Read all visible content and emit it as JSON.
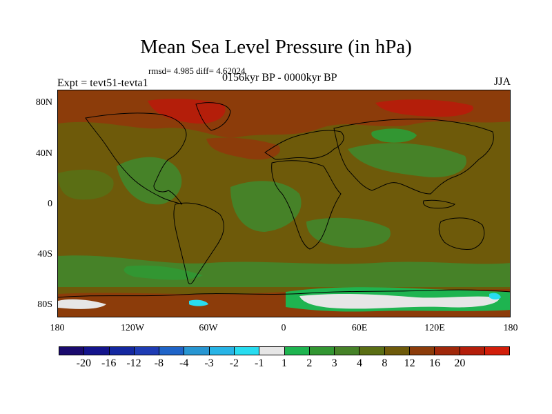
{
  "title": "Mean Sea Level Pressure (in hPa)",
  "stats": "rmsd= 4.985 diff= 4.62024",
  "left_label": "Expt = tevt51-tevta1",
  "center_label": "0156kyr BP - 0000kyr BP",
  "right_label": "JJA",
  "lat_ticks": [
    "80N",
    "40N",
    "0",
    "40S",
    "80S"
  ],
  "lon_ticks": [
    "180",
    "120W",
    "60W",
    "0",
    "60E",
    "120E",
    "180"
  ],
  "colorbar": {
    "labels": [
      "-20",
      "-16",
      "-12",
      "-8",
      "-4",
      "-3",
      "-2",
      "-1",
      "1",
      "2",
      "3",
      "4",
      "8",
      "12",
      "16",
      "20"
    ],
    "colors": [
      "#1a0a6e",
      "#14148c",
      "#1428a0",
      "#1e3cb4",
      "#1f64c8",
      "#2896d2",
      "#28b4e6",
      "#28dcf0",
      "#e6e6e6",
      "#1eb450",
      "#329632",
      "#468228",
      "#5a6e14",
      "#6e5a0a",
      "#8c3c0a",
      "#a0280a",
      "#b41e0a",
      "#d21e0a"
    ]
  },
  "colors": {
    "background": "#6e5a0a",
    "green_light": "#329632",
    "green_mid": "#468228",
    "green_dark": "#5a6e14",
    "brown_red": "#8c3c0a",
    "red": "#b41e0a",
    "white": "#e6e6e6",
    "cyan": "#28dcf0",
    "bright_green": "#1eb450"
  }
}
